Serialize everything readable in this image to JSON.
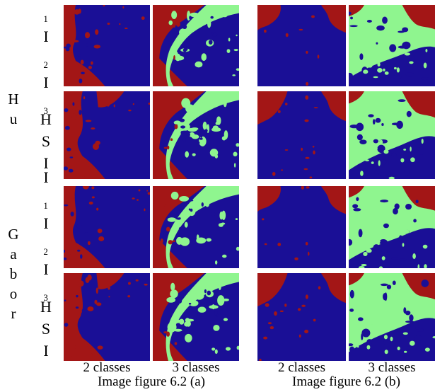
{
  "colors": {
    "class_a": "#1a0f96",
    "class_b": "#a31616",
    "class_c": "#8ff58f"
  },
  "groups": [
    {
      "label": [
        "H",
        "u"
      ]
    },
    {
      "label": [
        "G",
        "a",
        "b",
        "o",
        "r"
      ]
    }
  ],
  "rows": [
    {
      "label": [
        "I",
        "1",
        "I",
        "2",
        "I",
        "3"
      ]
    },
    {
      "label": [
        "H",
        "S",
        "I"
      ]
    },
    {
      "label": [
        "I",
        "1",
        "I",
        "2",
        "I",
        "3"
      ]
    },
    {
      "label": [
        "H",
        "S",
        "I"
      ]
    }
  ],
  "column_captions": [
    "2 classes",
    "3 classes",
    "2 classes",
    "3 classes"
  ],
  "figure_captions": [
    "Image figure 6.2 (a)",
    "Image figure 6.2 (b)"
  ]
}
